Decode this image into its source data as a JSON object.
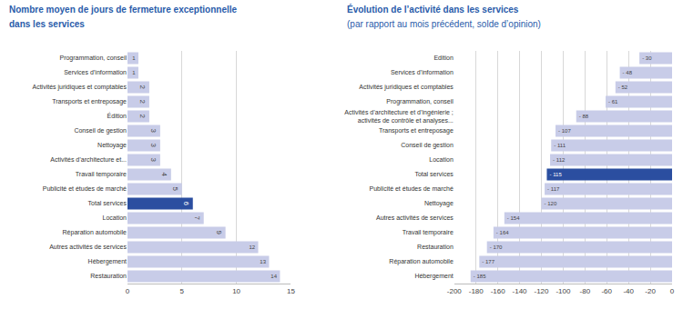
{
  "chart_data": [
    {
      "type": "bar",
      "orientation": "horizontal",
      "title": "Nombre moyen de jours de fermeture exceptionnelle",
      "subtitle": "dans les services",
      "categories": [
        "Programmation, conseil",
        "Services d’information",
        "Activités juridiques et comptables",
        "Transports et entreposage",
        "Édition",
        "Conseil de gestion",
        "Nettoyage",
        "Activités d’architecture et...",
        "Travail temporaire",
        "Publicité et études de marché",
        "Total services",
        "Location",
        "Réparation automobile",
        "Autres activités de services",
        "Hébergement",
        "Restauration"
      ],
      "values": [
        1,
        1,
        2,
        2,
        2,
        3,
        3,
        3,
        4,
        5,
        6,
        7,
        9,
        12,
        13,
        14
      ],
      "colors": [
        "#c8cce8",
        "#c8cce8",
        "#c8cce8",
        "#c8cce8",
        "#c8cce8",
        "#c8cce8",
        "#c8cce8",
        "#c8cce8",
        "#c8cce8",
        "#c8cce8",
        "#2b4ea0",
        "#c8cce8",
        "#c8cce8",
        "#c8cce8",
        "#c8cce8",
        "#c8cce8"
      ],
      "xlim": [
        0,
        15
      ],
      "xticks": [
        0,
        5,
        10,
        15
      ],
      "grid": true,
      "data_labels": true
    },
    {
      "type": "bar",
      "orientation": "horizontal",
      "title": "Évolution de l’activité dans les services",
      "subtitle": "(par rapport au mois précédent, solde d’opinion)",
      "categories": [
        "Edition",
        "Services d’information",
        "Activités juridiques et comptables",
        "Programmation, conseil",
        "Activités d’architecture et d’ingénierie ;\nactivités de contrôle et analyses...",
        "Transports et entreposage",
        "Conseil de gestion",
        "Location",
        "Total services",
        "Publicité et études de marché",
        "Nettoyage",
        "Autres activités de services",
        "Travail temporaire",
        "Restauration",
        "Réparation automobile",
        "Hébergement"
      ],
      "values": [
        -30,
        -48,
        -52,
        -61,
        -88,
        -107,
        -111,
        -112,
        -115,
        -117,
        -120,
        -154,
        -164,
        -170,
        -177,
        -185
      ],
      "value_labels": [
        "- 30",
        "- 48",
        "- 52",
        "- 61",
        "- 88",
        "- 107",
        "- 111",
        "- 112",
        "- 115",
        "- 117",
        "- 120",
        "- 154",
        "- 164",
        "- 170",
        "- 177",
        "- 185"
      ],
      "colors": [
        "#c8cce8",
        "#c8cce8",
        "#c8cce8",
        "#c8cce8",
        "#c8cce8",
        "#c8cce8",
        "#c8cce8",
        "#c8cce8",
        "#2b4ea0",
        "#c8cce8",
        "#c8cce8",
        "#c8cce8",
        "#c8cce8",
        "#c8cce8",
        "#c8cce8",
        "#c8cce8"
      ],
      "xlim": [
        -200,
        0
      ],
      "xticks": [
        -200,
        -180,
        -160,
        -140,
        -120,
        -100,
        -80,
        -60,
        -40,
        -20,
        0
      ],
      "grid": true,
      "data_labels": true
    }
  ]
}
